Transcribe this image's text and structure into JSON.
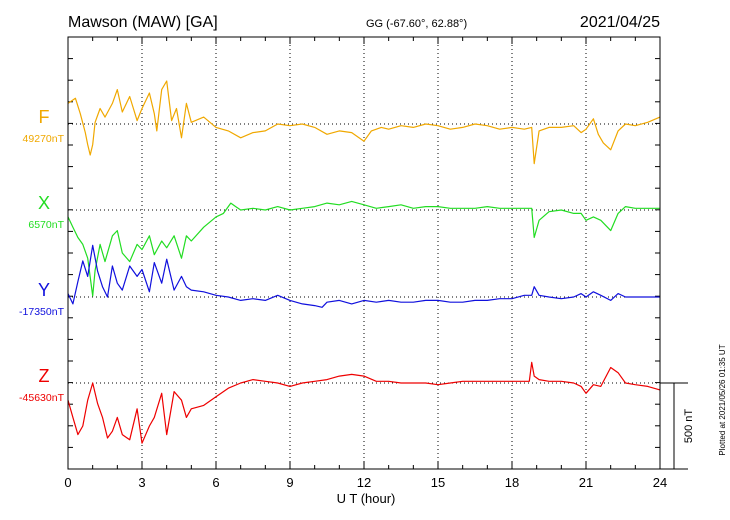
{
  "header": {
    "station": "Mawson (MAW)  [GA]",
    "coords": "GG (-67.60°,  62.88°)",
    "date": "2021/04/25"
  },
  "side_note": "Plotted at 2021/05/26 01:35 UT",
  "scale_bar_label": "500 nT",
  "chart_data": {
    "type": "line",
    "xlabel": "U T (hour)",
    "xlim": [
      0,
      24
    ],
    "x_ticks": [
      "0",
      "3",
      "6",
      "9",
      "12",
      "15",
      "18",
      "21",
      "24"
    ],
    "scale_nT": 500,
    "grid": true,
    "series": [
      {
        "name": "F",
        "baseline_label": "49270nT",
        "color": "#f0a800",
        "points": [
          [
            0,
            120
          ],
          [
            0.3,
            150
          ],
          [
            0.5,
            60
          ],
          [
            0.7,
            -50
          ],
          [
            0.8,
            -120
          ],
          [
            0.9,
            -180
          ],
          [
            1.0,
            -120
          ],
          [
            1.1,
            10
          ],
          [
            1.3,
            90
          ],
          [
            1.5,
            40
          ],
          [
            1.8,
            120
          ],
          [
            2.0,
            200
          ],
          [
            2.2,
            70
          ],
          [
            2.5,
            160
          ],
          [
            2.8,
            20
          ],
          [
            3.0,
            90
          ],
          [
            3.3,
            180
          ],
          [
            3.5,
            60
          ],
          [
            3.6,
            -40
          ],
          [
            3.8,
            200
          ],
          [
            4.0,
            250
          ],
          [
            4.2,
            20
          ],
          [
            4.4,
            90
          ],
          [
            4.6,
            -80
          ],
          [
            4.8,
            120
          ],
          [
            5.0,
            10
          ],
          [
            5.5,
            40
          ],
          [
            6.0,
            -20
          ],
          [
            6.5,
            -40
          ],
          [
            7.0,
            -80
          ],
          [
            7.5,
            -50
          ],
          [
            8.0,
            -40
          ],
          [
            8.5,
            0
          ],
          [
            9.0,
            -10
          ],
          [
            9.5,
            0
          ],
          [
            10.0,
            -20
          ],
          [
            10.5,
            -60
          ],
          [
            11.0,
            -40
          ],
          [
            11.5,
            -50
          ],
          [
            12.0,
            -100
          ],
          [
            12.3,
            -40
          ],
          [
            12.7,
            -20
          ],
          [
            13.0,
            -30
          ],
          [
            13.5,
            -10
          ],
          [
            14.0,
            -20
          ],
          [
            14.5,
            0
          ],
          [
            15.0,
            -10
          ],
          [
            15.5,
            -30
          ],
          [
            16.0,
            -20
          ],
          [
            16.5,
            0
          ],
          [
            17.0,
            -10
          ],
          [
            17.5,
            -30
          ],
          [
            18.0,
            -20
          ],
          [
            18.5,
            -30
          ],
          [
            18.8,
            -20
          ],
          [
            18.9,
            -230
          ],
          [
            19.1,
            -40
          ],
          [
            19.5,
            -20
          ],
          [
            20.0,
            -20
          ],
          [
            20.5,
            -10
          ],
          [
            20.8,
            -50
          ],
          [
            21.0,
            -30
          ],
          [
            21.3,
            30
          ],
          [
            21.5,
            -60
          ],
          [
            21.7,
            -110
          ],
          [
            22.0,
            -150
          ],
          [
            22.3,
            -40
          ],
          [
            22.6,
            0
          ],
          [
            23.0,
            -10
          ],
          [
            23.5,
            10
          ],
          [
            24.0,
            40
          ]
        ]
      },
      {
        "name": "X",
        "baseline_label": "6570nT",
        "color": "#22dd22",
        "points": [
          [
            0,
            -40
          ],
          [
            0.2,
            -100
          ],
          [
            0.4,
            -160
          ],
          [
            0.6,
            -200
          ],
          [
            0.8,
            -280
          ],
          [
            1.0,
            -500
          ],
          [
            1.1,
            -350
          ],
          [
            1.3,
            -200
          ],
          [
            1.5,
            -300
          ],
          [
            1.8,
            -150
          ],
          [
            2.0,
            -120
          ],
          [
            2.2,
            -250
          ],
          [
            2.5,
            -300
          ],
          [
            2.8,
            -200
          ],
          [
            3.0,
            -230
          ],
          [
            3.3,
            -150
          ],
          [
            3.5,
            -260
          ],
          [
            3.8,
            -180
          ],
          [
            4.0,
            -220
          ],
          [
            4.3,
            -150
          ],
          [
            4.6,
            -280
          ],
          [
            4.8,
            -150
          ],
          [
            5.0,
            -180
          ],
          [
            5.5,
            -100
          ],
          [
            6.0,
            -40
          ],
          [
            6.3,
            -20
          ],
          [
            6.6,
            40
          ],
          [
            6.8,
            20
          ],
          [
            7.0,
            0
          ],
          [
            7.5,
            10
          ],
          [
            8.0,
            0
          ],
          [
            8.5,
            20
          ],
          [
            9.0,
            0
          ],
          [
            9.5,
            10
          ],
          [
            10.0,
            20
          ],
          [
            10.5,
            40
          ],
          [
            11.0,
            30
          ],
          [
            11.5,
            50
          ],
          [
            12.0,
            30
          ],
          [
            12.5,
            10
          ],
          [
            13.0,
            20
          ],
          [
            13.5,
            30
          ],
          [
            14.0,
            10
          ],
          [
            14.5,
            20
          ],
          [
            15.0,
            20
          ],
          [
            15.5,
            10
          ],
          [
            16.0,
            10
          ],
          [
            16.5,
            10
          ],
          [
            17.0,
            20
          ],
          [
            17.5,
            10
          ],
          [
            18.0,
            10
          ],
          [
            18.5,
            10
          ],
          [
            18.8,
            10
          ],
          [
            18.9,
            -160
          ],
          [
            19.1,
            -60
          ],
          [
            19.5,
            -10
          ],
          [
            20.0,
            0
          ],
          [
            20.5,
            -20
          ],
          [
            20.8,
            -20
          ],
          [
            21.0,
            -60
          ],
          [
            21.3,
            -40
          ],
          [
            21.6,
            -60
          ],
          [
            22.0,
            -120
          ],
          [
            22.3,
            -20
          ],
          [
            22.6,
            20
          ],
          [
            23.0,
            10
          ],
          [
            23.5,
            10
          ],
          [
            24.0,
            10
          ]
        ]
      },
      {
        "name": "Y",
        "baseline_label": "-17350nT",
        "color": "#1010dd",
        "points": [
          [
            0,
            20
          ],
          [
            0.2,
            -40
          ],
          [
            0.4,
            90
          ],
          [
            0.6,
            210
          ],
          [
            0.8,
            120
          ],
          [
            1.0,
            300
          ],
          [
            1.2,
            150
          ],
          [
            1.4,
            60
          ],
          [
            1.6,
            0
          ],
          [
            1.8,
            180
          ],
          [
            2.0,
            80
          ],
          [
            2.2,
            40
          ],
          [
            2.5,
            180
          ],
          [
            2.8,
            120
          ],
          [
            3.0,
            160
          ],
          [
            3.3,
            30
          ],
          [
            3.5,
            200
          ],
          [
            3.8,
            80
          ],
          [
            4.0,
            220
          ],
          [
            4.3,
            40
          ],
          [
            4.6,
            120
          ],
          [
            4.8,
            60
          ],
          [
            5.0,
            40
          ],
          [
            5.5,
            30
          ],
          [
            6.0,
            10
          ],
          [
            6.5,
            0
          ],
          [
            7.0,
            -20
          ],
          [
            7.5,
            -10
          ],
          [
            8.0,
            -20
          ],
          [
            8.5,
            10
          ],
          [
            9.0,
            -20
          ],
          [
            9.5,
            -40
          ],
          [
            10.0,
            -50
          ],
          [
            10.3,
            -60
          ],
          [
            10.5,
            -30
          ],
          [
            11.0,
            -20
          ],
          [
            11.5,
            -40
          ],
          [
            12.0,
            -20
          ],
          [
            12.5,
            -30
          ],
          [
            13.0,
            -20
          ],
          [
            13.5,
            -30
          ],
          [
            14.0,
            -30
          ],
          [
            14.5,
            -20
          ],
          [
            15.0,
            -20
          ],
          [
            15.5,
            -30
          ],
          [
            16.0,
            -30
          ],
          [
            16.5,
            -20
          ],
          [
            17.0,
            -20
          ],
          [
            17.5,
            -10
          ],
          [
            18.0,
            -10
          ],
          [
            18.5,
            10
          ],
          [
            18.8,
            10
          ],
          [
            18.9,
            60
          ],
          [
            19.1,
            10
          ],
          [
            19.5,
            0
          ],
          [
            20.0,
            -10
          ],
          [
            20.5,
            0
          ],
          [
            20.8,
            20
          ],
          [
            21.0,
            0
          ],
          [
            21.3,
            30
          ],
          [
            21.6,
            10
          ],
          [
            22.0,
            -20
          ],
          [
            22.3,
            20
          ],
          [
            22.6,
            0
          ],
          [
            23.0,
            0
          ],
          [
            23.5,
            0
          ],
          [
            24.0,
            0
          ]
        ]
      },
      {
        "name": "Z",
        "baseline_label": "-45630nT",
        "color": "#ee0000",
        "points": [
          [
            0,
            -100
          ],
          [
            0.2,
            -200
          ],
          [
            0.4,
            -300
          ],
          [
            0.6,
            -250
          ],
          [
            0.8,
            -100
          ],
          [
            1.0,
            0
          ],
          [
            1.2,
            -120
          ],
          [
            1.4,
            -200
          ],
          [
            1.6,
            -320
          ],
          [
            1.8,
            -280
          ],
          [
            2.0,
            -200
          ],
          [
            2.2,
            -300
          ],
          [
            2.5,
            -330
          ],
          [
            2.8,
            -150
          ],
          [
            3.0,
            -350
          ],
          [
            3.3,
            -250
          ],
          [
            3.5,
            -200
          ],
          [
            3.8,
            -60
          ],
          [
            4.0,
            -300
          ],
          [
            4.3,
            -50
          ],
          [
            4.6,
            -100
          ],
          [
            4.8,
            -200
          ],
          [
            5.0,
            -150
          ],
          [
            5.5,
            -130
          ],
          [
            6.0,
            -80
          ],
          [
            6.5,
            -30
          ],
          [
            7.0,
            0
          ],
          [
            7.5,
            20
          ],
          [
            8.0,
            10
          ],
          [
            8.5,
            0
          ],
          [
            9.0,
            -20
          ],
          [
            9.5,
            0
          ],
          [
            10.0,
            10
          ],
          [
            10.5,
            20
          ],
          [
            11.0,
            40
          ],
          [
            11.5,
            50
          ],
          [
            12.0,
            40
          ],
          [
            12.5,
            10
          ],
          [
            13.0,
            10
          ],
          [
            13.5,
            0
          ],
          [
            14.0,
            0
          ],
          [
            14.5,
            0
          ],
          [
            15.0,
            -10
          ],
          [
            15.5,
            0
          ],
          [
            16.0,
            10
          ],
          [
            16.5,
            10
          ],
          [
            17.0,
            10
          ],
          [
            17.5,
            10
          ],
          [
            18.0,
            10
          ],
          [
            18.5,
            10
          ],
          [
            18.7,
            10
          ],
          [
            18.8,
            120
          ],
          [
            18.9,
            40
          ],
          [
            19.1,
            20
          ],
          [
            19.5,
            10
          ],
          [
            20.0,
            10
          ],
          [
            20.5,
            0
          ],
          [
            20.8,
            -20
          ],
          [
            21.0,
            -60
          ],
          [
            21.3,
            -10
          ],
          [
            21.6,
            -20
          ],
          [
            22.0,
            90
          ],
          [
            22.3,
            60
          ],
          [
            22.6,
            0
          ],
          [
            23.0,
            -10
          ],
          [
            23.5,
            -20
          ],
          [
            24.0,
            -40
          ]
        ]
      }
    ]
  }
}
